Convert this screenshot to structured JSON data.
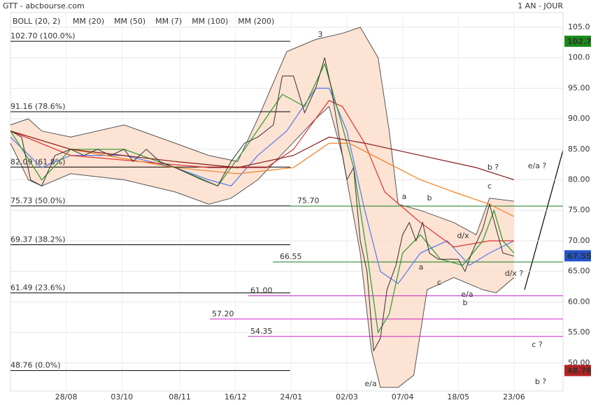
{
  "chart_data": {
    "type": "line",
    "title": "GTT - abcbourse.com",
    "period": "1 AN - JOUR",
    "legend": "top-left",
    "grid": true,
    "xlim": [
      0,
      248
    ],
    "xticks": [
      {
        "value": 25,
        "label": "28/08"
      },
      {
        "value": 50,
        "label": "03/10"
      },
      {
        "value": 76,
        "label": "08/11"
      },
      {
        "value": 101,
        "label": "16/12"
      },
      {
        "value": 126,
        "label": "24/01"
      },
      {
        "value": 151,
        "label": "02/03"
      },
      {
        "value": 176,
        "label": "07/04"
      },
      {
        "value": 201,
        "label": "18/05"
      },
      {
        "value": 226,
        "label": "23/06"
      }
    ],
    "ylim": [
      45.4,
      107.4
    ],
    "yticks": [
      {
        "value": 50,
        "label": "50.00"
      },
      {
        "value": 55,
        "label": "55.00"
      },
      {
        "value": 60,
        "label": "60.00"
      },
      {
        "value": 65,
        "label": "65.00"
      },
      {
        "value": 70,
        "label": "70.00"
      },
      {
        "value": 75,
        "label": "75.00"
      },
      {
        "value": 80,
        "label": "80.00"
      },
      {
        "value": 85,
        "label": "85.00"
      },
      {
        "value": 90,
        "label": "90.00"
      },
      {
        "value": 95,
        "label": "95.00"
      },
      {
        "value": 100,
        "label": "100.0"
      },
      {
        "value": 105,
        "label": "105.0"
      }
    ],
    "band": {
      "name": "BOLL (20, 2)",
      "color": "#fbdcc8",
      "line_color": "#555555",
      "upper": {
        "x": [
          0,
          8,
          14,
          27,
          51,
          74,
          89,
          102,
          111,
          124,
          137,
          149,
          157,
          165,
          170,
          174,
          184,
          199,
          209,
          215,
          226
        ],
        "values": [
          89,
          90,
          88,
          87,
          89,
          86,
          84,
          83,
          90,
          101,
          103,
          104,
          105,
          100,
          88,
          76,
          75,
          73,
          71,
          77,
          76.5
        ]
      },
      "lower": {
        "x": [
          0,
          8,
          14,
          27,
          51,
          74,
          89,
          99,
          111,
          124,
          137,
          143,
          149,
          157,
          162,
          166,
          174,
          181,
          187,
          199,
          212,
          218,
          226
        ],
        "values": [
          86,
          80,
          79,
          81,
          80,
          78,
          76,
          77,
          80,
          85,
          90,
          92,
          84,
          68,
          52,
          46,
          46,
          48,
          62,
          64,
          62,
          61.5,
          64
        ]
      }
    },
    "price": {
      "color": "#333333",
      "x": [
        0,
        5,
        9,
        14,
        20,
        27,
        33,
        39,
        45,
        51,
        55,
        61,
        67,
        74,
        80,
        86,
        93,
        99,
        105,
        111,
        118,
        122,
        127,
        132,
        137,
        141,
        144,
        148,
        151,
        154,
        157,
        160,
        163,
        166,
        169,
        173,
        176,
        179,
        182,
        185,
        188,
        192,
        196,
        201,
        204,
        207,
        212,
        215,
        218,
        221,
        226
      ],
      "values": [
        88,
        87,
        80,
        79,
        84,
        85,
        84,
        85,
        84,
        85,
        83,
        85,
        83,
        82,
        81,
        80,
        79,
        83,
        86,
        87,
        89,
        97,
        97,
        91,
        95,
        100,
        95,
        86,
        80,
        82,
        70,
        65,
        52,
        54,
        62,
        66,
        71,
        73,
        70,
        73,
        68,
        67,
        67,
        67,
        65,
        68,
        72,
        76,
        72,
        68,
        67.5
      ]
    },
    "series": [
      {
        "name": "MM (20)",
        "color": "#5577ee",
        "x": [
          0,
          14,
          27,
          51,
          74,
          89,
          99,
          111,
          124,
          137,
          143,
          151,
          159,
          166,
          174,
          184,
          196,
          206,
          215,
          226
        ],
        "values": [
          87,
          82,
          84,
          84,
          82,
          80,
          79,
          84,
          88,
          95,
          95,
          88,
          75,
          65,
          63,
          68,
          70,
          66,
          68,
          70
        ]
      },
      {
        "name": "MM (50)",
        "color": "#e03030",
        "x": [
          0,
          27,
          58,
          89,
          115,
          127,
          143,
          149,
          159,
          168,
          184,
          199,
          215,
          226
        ],
        "values": [
          88,
          84,
          83,
          82,
          82,
          85,
          93,
          92,
          86,
          78,
          73,
          69,
          70,
          70
        ]
      },
      {
        "name": "MM (7)",
        "color": "#2a9a2a",
        "x": [
          0,
          14,
          27,
          51,
          74,
          93,
          105,
          122,
          132,
          141,
          148,
          154,
          160,
          165,
          170,
          176,
          184,
          193,
          203,
          212,
          217,
          221,
          226
        ],
        "values": [
          88,
          80,
          85,
          85,
          82,
          79,
          85,
          94,
          92,
          99,
          90,
          82,
          68,
          55,
          58,
          68,
          71,
          67,
          66,
          70,
          75,
          70,
          68
        ]
      },
      {
        "name": "MM (100)",
        "color": "#f08020",
        "x": [
          0,
          27,
          74,
          102,
          127,
          143,
          152,
          168,
          184,
          199,
          215,
          226
        ],
        "values": [
          88,
          85,
          82,
          81,
          82,
          86,
          86,
          83,
          80,
          78,
          76,
          74
        ]
      },
      {
        "name": "MM (200)",
        "color": "#8b1a1a",
        "x": [
          0,
          27,
          74,
          102,
          127,
          143,
          159,
          184,
          209,
          226
        ],
        "values": [
          88,
          85,
          83,
          82,
          84,
          87,
          86,
          84,
          82,
          80
        ]
      }
    ],
    "fib_levels": {
      "color": "#000000",
      "levels": [
        {
          "value": 102.7,
          "label": "102.70 (100.0%)"
        },
        {
          "value": 91.16,
          "label": "91.16 (78.6%)"
        },
        {
          "value": 82.09,
          "label": "82.09 (61.8%)"
        },
        {
          "value": 75.73,
          "label": "75.73 (50.0%)"
        },
        {
          "value": 69.37,
          "label": "69.37 (38.2%)"
        },
        {
          "value": 61.49,
          "label": "61.49 (23.6%)"
        },
        {
          "value": 48.76,
          "label": "48.76 (0.0%)"
        }
      ]
    },
    "support_lines": {
      "color": "#1a7a1a",
      "levels": [
        {
          "value": 75.7,
          "label": "75.70"
        },
        {
          "value": 66.55,
          "label": "66.55"
        }
      ]
    },
    "target_lines": {
      "color": "#cc22cc",
      "levels": [
        {
          "value": 61,
          "label": "61.00"
        },
        {
          "value": 57.2,
          "label": "57.20"
        },
        {
          "value": 54.35,
          "label": "54.35"
        }
      ]
    },
    "price_tags": [
      {
        "value": 102.7,
        "label": "102.7",
        "color": "#1a8a1a"
      },
      {
        "value": 67.55,
        "label": "67.55",
        "color": "#2255cc"
      },
      {
        "value": 48.76,
        "label": "48.76",
        "color": "#b22222"
      }
    ],
    "annotations": [
      "3",
      "b ?",
      "c",
      "e/a ?",
      "a",
      "b",
      "d/x",
      "a",
      "c",
      "e/a",
      "b",
      "d/x ?",
      "c ?",
      "b ?",
      "e/a"
    ]
  }
}
